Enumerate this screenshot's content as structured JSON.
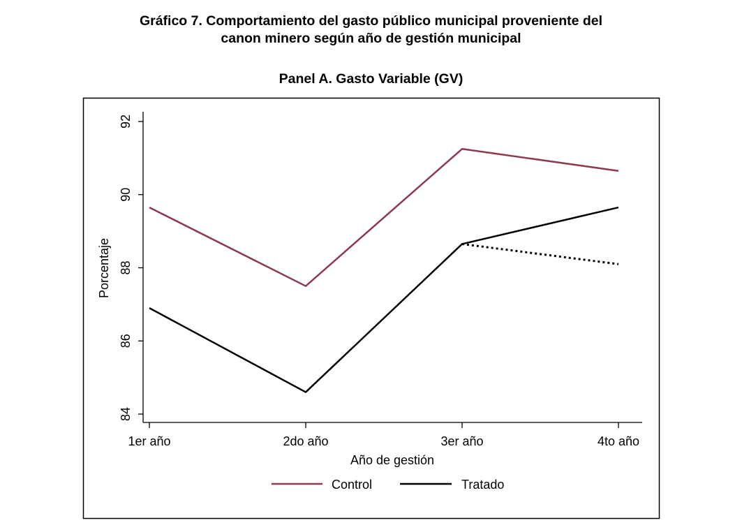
{
  "figure": {
    "title_line1": "Gráfico 7. Comportamiento del gasto público municipal proveniente del",
    "title_line2": "canon minero según año de gestión municipal"
  },
  "chart_data": {
    "type": "line",
    "title": "Panel A. Gasto Variable (GV)",
    "xlabel": "Año de gestión",
    "ylabel": "Porcentaje",
    "categories": [
      "1er año",
      "2do año",
      "3er año",
      "4to año"
    ],
    "yticks": [
      84,
      86,
      88,
      90,
      92
    ],
    "ylim": [
      83.7,
      92.2
    ],
    "grid": false,
    "legend_position": "bottom",
    "series": [
      {
        "name": "Control",
        "values": [
          89.65,
          87.5,
          91.25,
          90.65
        ],
        "color": "#8c3a4e",
        "style": "solid"
      },
      {
        "name": "Tratado",
        "values": [
          86.9,
          84.6,
          88.65,
          89.65
        ],
        "color": "#000000",
        "style": "solid"
      }
    ],
    "counterfactual": {
      "name": "",
      "x": [
        "3er año",
        "4to año"
      ],
      "values": [
        88.65,
        88.1
      ],
      "color": "#000000",
      "style": "dotted"
    }
  }
}
